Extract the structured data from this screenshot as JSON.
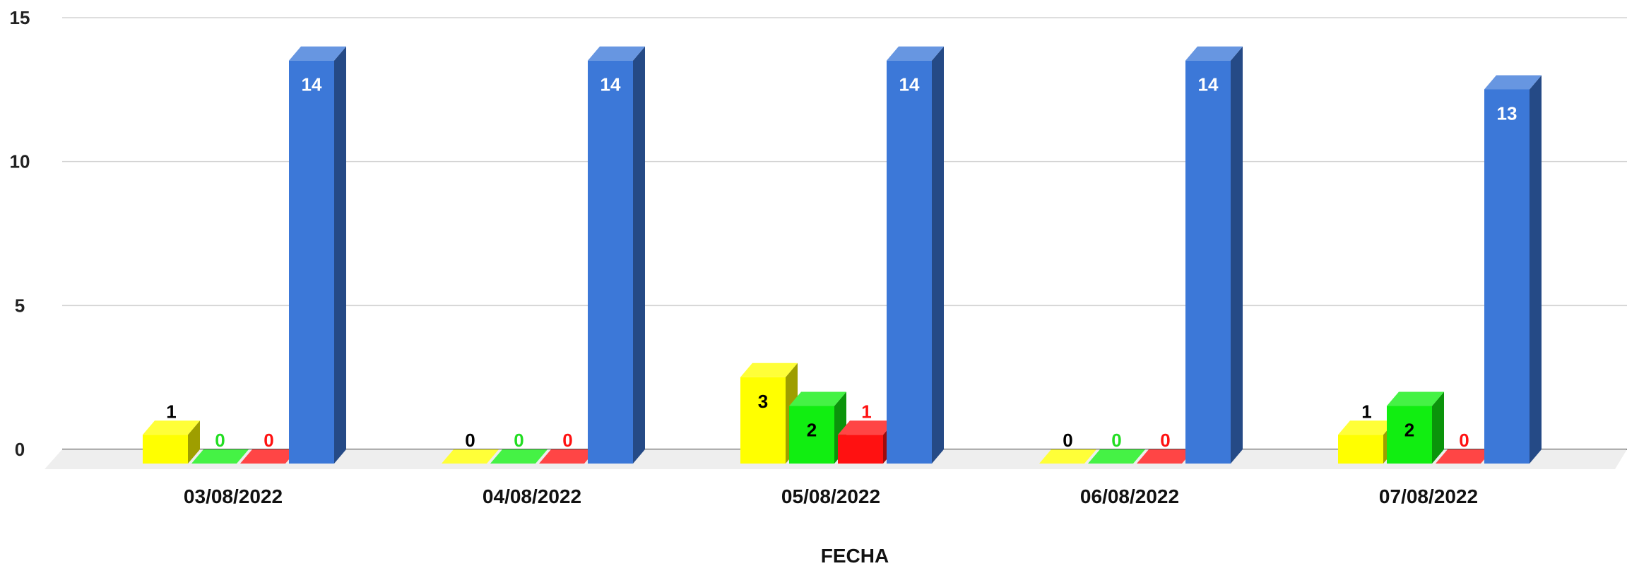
{
  "chart_data": {
    "type": "bar",
    "xlabel": "FECHA",
    "ylabel": "",
    "ylim": [
      0,
      15
    ],
    "yticks": [
      0,
      5,
      10,
      15
    ],
    "grid": true,
    "legend": "none",
    "categories": [
      "03/08/2022",
      "04/08/2022",
      "05/08/2022",
      "06/08/2022",
      "07/08/2022"
    ],
    "series": [
      {
        "values": [
          1,
          0,
          3,
          0,
          1
        ],
        "color": "#ffff00",
        "label_color": "#000000"
      },
      {
        "values": [
          0,
          0,
          2,
          0,
          2
        ],
        "color": "#11ee11",
        "label_color": "#22dd22"
      },
      {
        "values": [
          0,
          0,
          1,
          0,
          0
        ],
        "color": "#ff1111",
        "label_color": "#ff1111"
      },
      {
        "values": [
          14,
          14,
          14,
          14,
          13
        ],
        "color": "#3c78d8",
        "label_color": "#ffffff"
      }
    ]
  }
}
